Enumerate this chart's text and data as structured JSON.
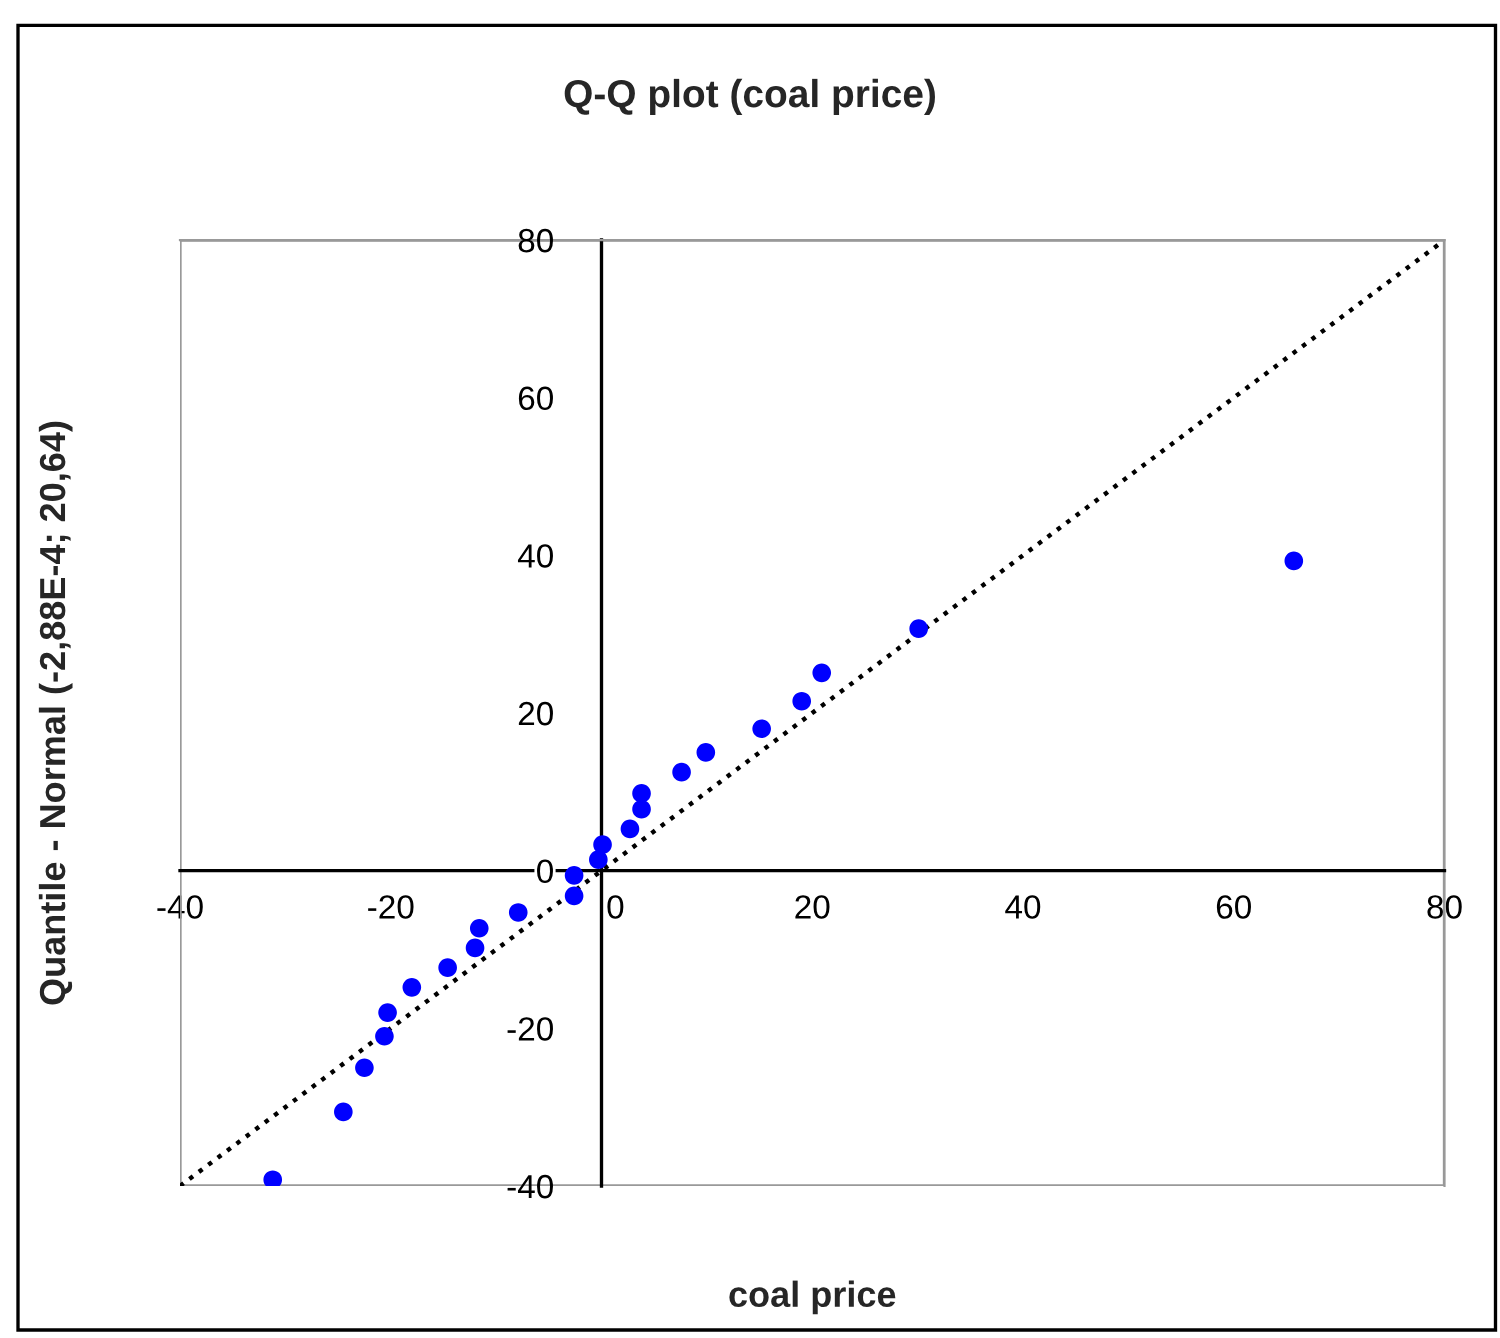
{
  "chart_data": {
    "type": "scatter",
    "title": "Q-Q plot (coal price)",
    "xlabel": "coal price",
    "ylabel": "Quantile - Normal (-2,88E-4; 20,64)",
    "xlim": [
      -40,
      80
    ],
    "ylim": [
      -40,
      80
    ],
    "xticks": [
      -40,
      -20,
      0,
      20,
      40,
      60,
      80
    ],
    "yticks": [
      -40,
      -20,
      0,
      20,
      40,
      60,
      80
    ],
    "grid": false,
    "legend": false,
    "series": [
      {
        "color": "#0000ff",
        "marker": "circle",
        "x": [
          -31.2,
          -24.5,
          -22.5,
          -20.6,
          -20.3,
          -18.0,
          -14.6,
          -12.0,
          -11.6,
          -7.9,
          -2.6,
          -2.6,
          -0.3,
          0.1,
          2.7,
          3.8,
          3.8,
          7.6,
          9.9,
          15.2,
          19.0,
          20.9,
          30.1,
          65.7
        ],
        "values": [
          -39.2,
          -30.6,
          -25.0,
          -21.0,
          -18.0,
          -14.8,
          -12.3,
          -9.8,
          -7.3,
          -5.3,
          -3.2,
          -0.6,
          1.4,
          3.3,
          5.3,
          7.8,
          9.8,
          12.5,
          15.0,
          18.0,
          21.5,
          25.1,
          30.7,
          39.3
        ]
      },
      {
        "type": "line",
        "color": "#000000",
        "line_style": "dotted",
        "marker": "none",
        "x": [
          -40,
          80
        ],
        "values": [
          -40,
          80
        ]
      }
    ]
  }
}
